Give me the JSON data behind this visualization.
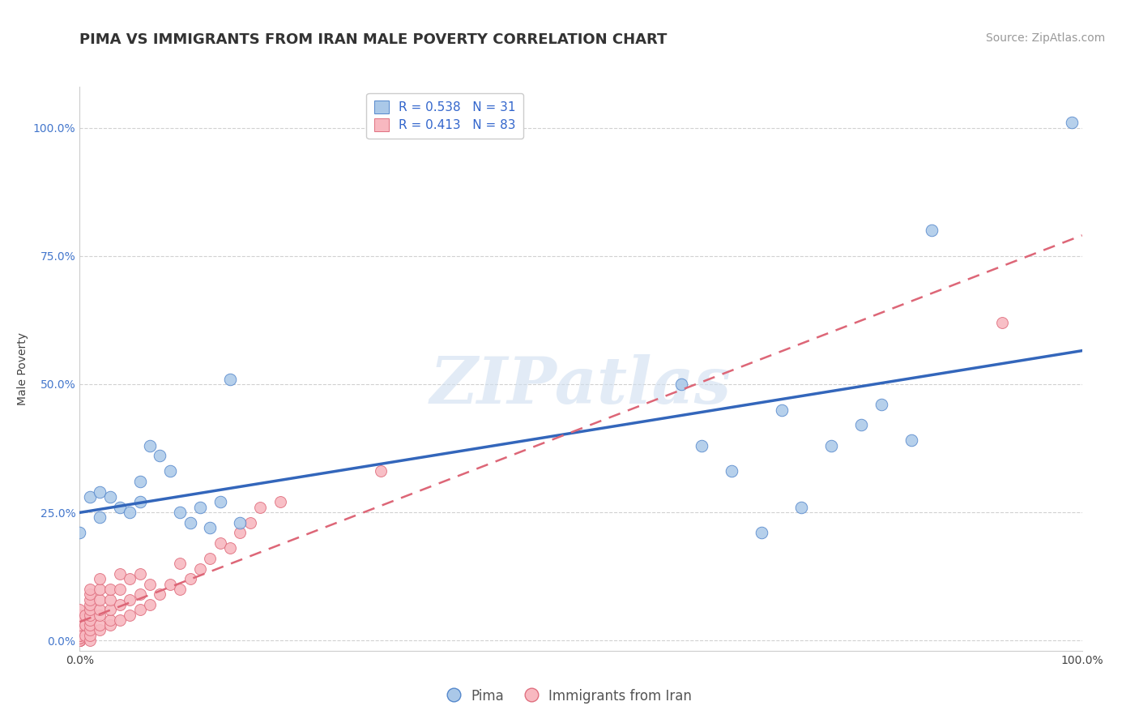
{
  "title": "PIMA VS IMMIGRANTS FROM IRAN MALE POVERTY CORRELATION CHART",
  "source": "Source: ZipAtlas.com",
  "ylabel": "Male Poverty",
  "xlim": [
    0.0,
    1.0
  ],
  "ylim": [
    -0.02,
    1.08
  ],
  "xtick_labels": [
    "0.0%",
    "100.0%"
  ],
  "ytick_labels": [
    "0.0%",
    "25.0%",
    "50.0%",
    "75.0%",
    "100.0%"
  ],
  "ytick_vals": [
    0.0,
    0.25,
    0.5,
    0.75,
    1.0
  ],
  "grid_color": "#cccccc",
  "background_color": "#ffffff",
  "pima_color": "#aac8e8",
  "pima_edge_color": "#5588cc",
  "pima_line_color": "#3366bb",
  "pima_R": 0.538,
  "pima_N": 31,
  "pima_x": [
    0.0,
    0.01,
    0.02,
    0.02,
    0.03,
    0.04,
    0.05,
    0.06,
    0.06,
    0.07,
    0.08,
    0.09,
    0.1,
    0.11,
    0.12,
    0.13,
    0.14,
    0.15,
    0.16,
    0.6,
    0.62,
    0.65,
    0.68,
    0.7,
    0.72,
    0.75,
    0.78,
    0.8,
    0.83,
    0.85,
    0.99
  ],
  "pima_y": [
    0.21,
    0.28,
    0.24,
    0.29,
    0.28,
    0.26,
    0.25,
    0.31,
    0.27,
    0.38,
    0.36,
    0.33,
    0.25,
    0.23,
    0.26,
    0.22,
    0.27,
    0.51,
    0.23,
    0.5,
    0.38,
    0.33,
    0.21,
    0.45,
    0.26,
    0.38,
    0.42,
    0.46,
    0.39,
    0.8,
    1.01
  ],
  "iran_color": "#f8b8c0",
  "iran_edge_color": "#e07080",
  "iran_line_color": "#dd6677",
  "iran_R": 0.413,
  "iran_N": 83,
  "iran_x": [
    0.0,
    0.0,
    0.0,
    0.0,
    0.0,
    0.0,
    0.0,
    0.0,
    0.0,
    0.0,
    0.0,
    0.0,
    0.0,
    0.0,
    0.0,
    0.0,
    0.0,
    0.0,
    0.0,
    0.0,
    0.0,
    0.0,
    0.0,
    0.0,
    0.0,
    0.0,
    0.0,
    0.0,
    0.0,
    0.0,
    0.005,
    0.005,
    0.005,
    0.01,
    0.01,
    0.01,
    0.01,
    0.01,
    0.01,
    0.01,
    0.01,
    0.01,
    0.01,
    0.01,
    0.02,
    0.02,
    0.02,
    0.02,
    0.02,
    0.02,
    0.02,
    0.03,
    0.03,
    0.03,
    0.03,
    0.03,
    0.04,
    0.04,
    0.04,
    0.04,
    0.05,
    0.05,
    0.05,
    0.06,
    0.06,
    0.06,
    0.07,
    0.07,
    0.08,
    0.09,
    0.1,
    0.1,
    0.11,
    0.12,
    0.13,
    0.14,
    0.15,
    0.16,
    0.17,
    0.18,
    0.2,
    0.3,
    0.92
  ],
  "iran_y": [
    0.0,
    0.0,
    0.0,
    0.0,
    0.0,
    0.0,
    0.0,
    0.0,
    0.0,
    0.0,
    0.0,
    0.0,
    0.0,
    0.0,
    0.0,
    0.005,
    0.005,
    0.01,
    0.01,
    0.01,
    0.02,
    0.02,
    0.02,
    0.03,
    0.03,
    0.04,
    0.04,
    0.05,
    0.05,
    0.06,
    0.01,
    0.03,
    0.05,
    0.0,
    0.01,
    0.02,
    0.03,
    0.04,
    0.05,
    0.06,
    0.07,
    0.08,
    0.09,
    0.1,
    0.02,
    0.03,
    0.05,
    0.06,
    0.08,
    0.1,
    0.12,
    0.03,
    0.04,
    0.06,
    0.08,
    0.1,
    0.04,
    0.07,
    0.1,
    0.13,
    0.05,
    0.08,
    0.12,
    0.06,
    0.09,
    0.13,
    0.07,
    0.11,
    0.09,
    0.11,
    0.1,
    0.15,
    0.12,
    0.14,
    0.16,
    0.19,
    0.18,
    0.21,
    0.23,
    0.26,
    0.27,
    0.33,
    0.62
  ],
  "legend_pima_label": "Pima",
  "legend_iran_label": "Immigrants from Iran",
  "legend_pima_str": "R = 0.538   N = 31",
  "legend_iran_str": "R = 0.413   N = 83",
  "watermark": "ZIPatlas",
  "title_fontsize": 13,
  "label_fontsize": 10,
  "tick_fontsize": 10,
  "legend_fontsize": 11,
  "source_fontsize": 10
}
